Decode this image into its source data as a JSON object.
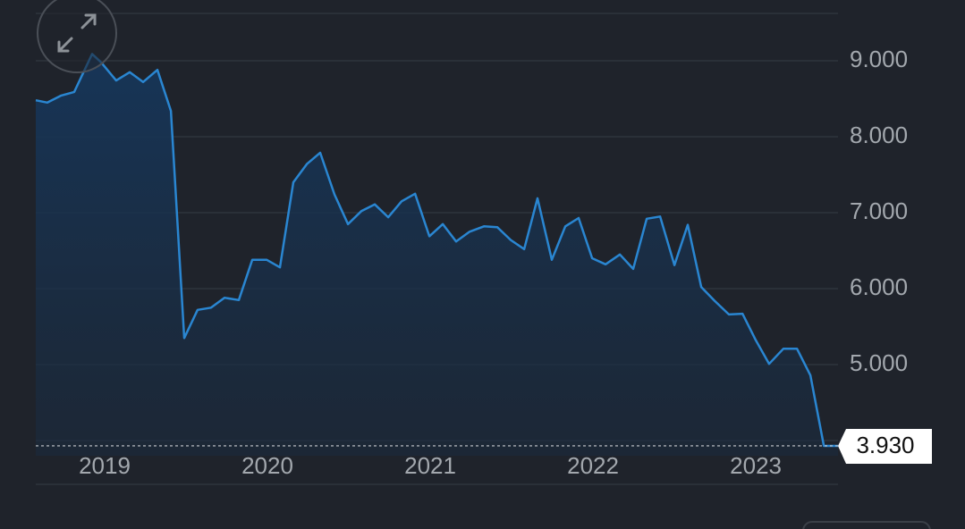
{
  "chart_data": {
    "type": "area-line",
    "x": [
      2018.577,
      2018.648,
      2018.731,
      2018.813,
      2018.923,
      2018.978,
      2019.071,
      2019.154,
      2019.236,
      2019.324,
      2019.407,
      2019.489,
      2019.571,
      2019.654,
      2019.736,
      2019.824,
      2019.907,
      2019.995,
      2020.077,
      2020.159,
      2020.242,
      2020.324,
      2020.412,
      2020.495,
      2020.577,
      2020.659,
      2020.742,
      2020.824,
      2020.907,
      2020.995,
      2021.077,
      2021.159,
      2021.242,
      2021.33,
      2021.412,
      2021.495,
      2021.577,
      2021.659,
      2021.747,
      2021.83,
      2021.912,
      2021.995,
      2022.077,
      2022.165,
      2022.247,
      2022.33,
      2022.412,
      2022.5,
      2022.582,
      2022.665,
      2022.747,
      2022.835,
      2022.918,
      2023.0,
      2023.082,
      2023.17,
      2023.253,
      2023.335,
      2023.418,
      2023.505
    ],
    "values": [
      8.48,
      8.45,
      8.54,
      8.59,
      9.09,
      8.98,
      8.74,
      8.85,
      8.72,
      8.88,
      8.34,
      5.35,
      5.72,
      5.75,
      5.88,
      5.85,
      6.38,
      6.38,
      6.28,
      7.4,
      7.64,
      7.79,
      7.24,
      6.85,
      7.02,
      7.11,
      6.94,
      7.15,
      7.25,
      6.69,
      6.85,
      6.62,
      6.75,
      6.82,
      6.81,
      6.64,
      6.52,
      7.19,
      6.38,
      6.82,
      6.93,
      6.4,
      6.32,
      6.45,
      6.26,
      6.92,
      6.95,
      6.31,
      6.84,
      6.02,
      5.84,
      5.66,
      5.67,
      5.32,
      5.01,
      5.21,
      5.21,
      4.86,
      3.93,
      3.93
    ],
    "color": "#2a86d1",
    "xlim": [
      2018.577,
      2023.505
    ],
    "xticks": [
      2019,
      2020,
      2021,
      2022,
      2023
    ],
    "ylim": [
      3.8,
      9.624
    ],
    "yticks": [
      {
        "value": 5,
        "label": "5.000"
      },
      {
        "value": 6,
        "label": "6.000"
      },
      {
        "value": 7,
        "label": "7.000"
      },
      {
        "value": 8,
        "label": "8.000"
      },
      {
        "value": 9,
        "label": "9.000"
      }
    ],
    "grid": true,
    "current_value": {
      "value": 3.93,
      "label": "3.930"
    }
  }
}
